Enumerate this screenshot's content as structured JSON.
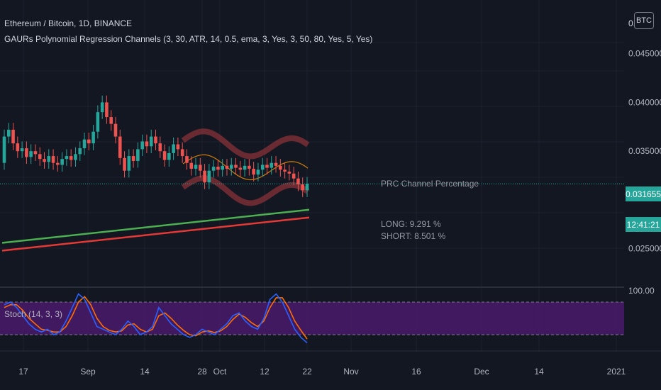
{
  "header": {
    "symbol_line": "Ethereum / Bitcoin, 1D, BINANCE",
    "indicator_line": "GAURs Polynomial Regression Channels (3, 30, ATR, 14, 0.5, ema, 3, Yes, 3, 50, 80, Yes, 5, Yes)"
  },
  "currency_badge": "BTC",
  "top_price_partial": "0.        0",
  "price_tag": {
    "value": "0.031655",
    "timer": "12:41:21",
    "color": "#26a69a"
  },
  "annotations": {
    "prc_title": "PRC Channel Percentage",
    "long": "LONG:   9.291 %",
    "short": "SHORT:  8.501 %"
  },
  "stoch": {
    "label": "Stoch (14, 3, 3)",
    "top_tick": "100.00",
    "band_upper": 80,
    "band_lower": 20
  },
  "colors": {
    "up": "#26a69a",
    "down": "#ef5350",
    "band": "#b03a3f",
    "ma_fast": "#4caf50",
    "ma_slow": "#e53935",
    "stoch_k": "#2962ff",
    "stoch_d": "#ff6d00",
    "stoch_fill": "#4a1a6b"
  },
  "chart_data": {
    "type": "candlestick",
    "y_ticks": [
      "0.045000",
      "0.040000",
      "0.035000",
      "0.025000"
    ],
    "y_tick_values": [
      0.045,
      0.04,
      0.035,
      0.025
    ],
    "ylim": [
      0.0212,
      0.0505
    ],
    "x_ticks": [
      "17",
      "Sep",
      "14",
      "28",
      "Oct",
      "12",
      "22",
      "Nov",
      "16",
      "Dec",
      "14",
      "2021"
    ],
    "last_price": 0.031655,
    "candles_approx": [
      {
        "o": 0.0338,
        "c": 0.0365
      },
      {
        "o": 0.0365,
        "c": 0.0372
      },
      {
        "o": 0.0372,
        "c": 0.0358
      },
      {
        "o": 0.0358,
        "c": 0.035
      },
      {
        "o": 0.035,
        "c": 0.0353
      },
      {
        "o": 0.0353,
        "c": 0.0344
      },
      {
        "o": 0.0344,
        "c": 0.035
      },
      {
        "o": 0.035,
        "c": 0.0347
      },
      {
        "o": 0.0347,
        "c": 0.0342
      },
      {
        "o": 0.0342,
        "c": 0.0339
      },
      {
        "o": 0.0339,
        "c": 0.0345
      },
      {
        "o": 0.0345,
        "c": 0.0338
      },
      {
        "o": 0.0338,
        "c": 0.0336
      },
      {
        "o": 0.0336,
        "c": 0.0342
      },
      {
        "o": 0.0342,
        "c": 0.0345
      },
      {
        "o": 0.0345,
        "c": 0.0341
      },
      {
        "o": 0.0341,
        "c": 0.0347
      },
      {
        "o": 0.0347,
        "c": 0.0353
      },
      {
        "o": 0.0353,
        "c": 0.0362
      },
      {
        "o": 0.0362,
        "c": 0.0358
      },
      {
        "o": 0.0358,
        "c": 0.037
      },
      {
        "o": 0.037,
        "c": 0.039
      },
      {
        "o": 0.039,
        "c": 0.04
      },
      {
        "o": 0.04,
        "c": 0.0385
      },
      {
        "o": 0.0385,
        "c": 0.0378
      },
      {
        "o": 0.0378,
        "c": 0.0365
      },
      {
        "o": 0.0365,
        "c": 0.0343
      },
      {
        "o": 0.0343,
        "c": 0.033
      },
      {
        "o": 0.033,
        "c": 0.0345
      },
      {
        "o": 0.0345,
        "c": 0.034
      },
      {
        "o": 0.034,
        "c": 0.0352
      },
      {
        "o": 0.0352,
        "c": 0.036
      },
      {
        "o": 0.036,
        "c": 0.0355
      },
      {
        "o": 0.0355,
        "c": 0.0365
      },
      {
        "o": 0.0365,
        "c": 0.0358
      },
      {
        "o": 0.0358,
        "c": 0.035
      },
      {
        "o": 0.035,
        "c": 0.0341
      },
      {
        "o": 0.0341,
        "c": 0.0348
      },
      {
        "o": 0.0348,
        "c": 0.0357
      },
      {
        "o": 0.0357,
        "c": 0.0352
      },
      {
        "o": 0.0352,
        "c": 0.0345
      },
      {
        "o": 0.0345,
        "c": 0.0338
      },
      {
        "o": 0.0338,
        "c": 0.0332
      },
      {
        "o": 0.0332,
        "c": 0.0336
      },
      {
        "o": 0.0336,
        "c": 0.033
      },
      {
        "o": 0.033,
        "c": 0.0318
      },
      {
        "o": 0.0318,
        "c": 0.033
      },
      {
        "o": 0.033,
        "c": 0.0334
      },
      {
        "o": 0.0334,
        "c": 0.0331
      },
      {
        "o": 0.0331,
        "c": 0.0335
      },
      {
        "o": 0.0335,
        "c": 0.0332
      },
      {
        "o": 0.0332,
        "c": 0.0336
      },
      {
        "o": 0.0336,
        "c": 0.0333
      },
      {
        "o": 0.0333,
        "c": 0.0331
      },
      {
        "o": 0.0331,
        "c": 0.0335
      },
      {
        "o": 0.0335,
        "c": 0.0332
      },
      {
        "o": 0.0332,
        "c": 0.0326
      },
      {
        "o": 0.0326,
        "c": 0.0331
      },
      {
        "o": 0.0331,
        "c": 0.0336
      },
      {
        "o": 0.0336,
        "c": 0.0333
      },
      {
        "o": 0.0333,
        "c": 0.0338
      },
      {
        "o": 0.0338,
        "c": 0.0335
      },
      {
        "o": 0.0335,
        "c": 0.0331
      },
      {
        "o": 0.0331,
        "c": 0.0329
      },
      {
        "o": 0.0329,
        "c": 0.0327
      },
      {
        "o": 0.0327,
        "c": 0.0322
      },
      {
        "o": 0.0322,
        "c": 0.0316
      },
      {
        "o": 0.0316,
        "c": 0.031
      },
      {
        "o": 0.031,
        "c": 0.03165
      }
    ],
    "ma_fast": {
      "from": 0.0256,
      "to": 0.029
    },
    "ma_slow": {
      "from": 0.0248,
      "to": 0.0282
    },
    "stoch_k_approx": [
      75,
      80,
      70,
      55,
      40,
      30,
      25,
      30,
      20,
      25,
      45,
      70,
      95,
      85,
      60,
      35,
      30,
      25,
      20,
      30,
      45,
      35,
      20,
      25,
      35,
      70,
      55,
      40,
      30,
      20,
      15,
      20,
      30,
      25,
      20,
      30,
      40,
      55,
      60,
      45,
      35,
      30,
      50,
      85,
      95,
      80,
      55,
      30,
      15,
      5
    ],
    "stoch_d_approx": [
      70,
      75,
      75,
      65,
      50,
      40,
      30,
      28,
      25,
      25,
      35,
      55,
      80,
      90,
      75,
      50,
      35,
      28,
      25,
      27,
      38,
      40,
      30,
      25,
      30,
      55,
      60,
      50,
      38,
      28,
      20,
      18,
      25,
      27,
      24,
      27,
      35,
      48,
      58,
      52,
      42,
      35,
      45,
      70,
      88,
      88,
      70,
      45,
      28,
      12
    ]
  }
}
